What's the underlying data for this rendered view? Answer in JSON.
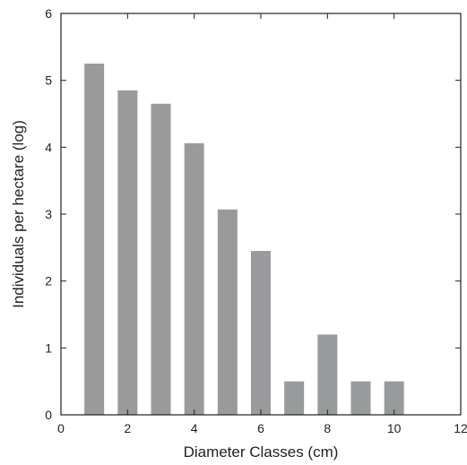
{
  "chart_data": {
    "type": "bar",
    "xlabel": "Diameter Classes (cm)",
    "ylabel": "Individuals per hectare (log)",
    "xlim": [
      0,
      12
    ],
    "ylim": [
      0,
      6
    ],
    "x_ticks": [
      0,
      2,
      4,
      6,
      8,
      10,
      12
    ],
    "y_ticks": [
      0,
      1,
      2,
      3,
      4,
      5,
      6
    ],
    "grid": false,
    "legend": "none",
    "bar_color": "#999a9c",
    "x": [
      1,
      2,
      3,
      4,
      5,
      6,
      7,
      8,
      9,
      10
    ],
    "values": [
      5.25,
      4.85,
      4.65,
      4.06,
      3.07,
      2.45,
      0.5,
      1.2,
      0.5,
      0.5
    ]
  }
}
